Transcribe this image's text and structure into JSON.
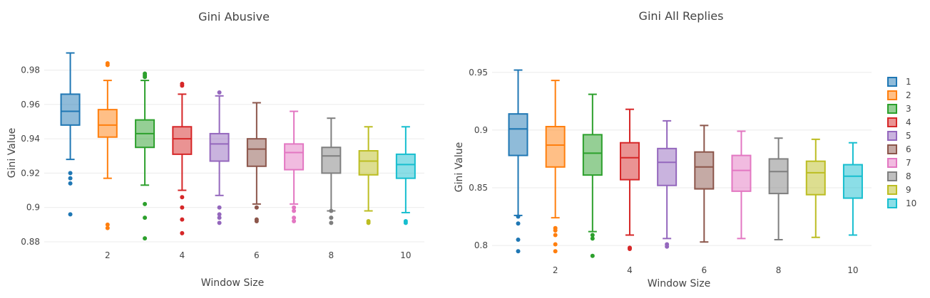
{
  "chart_data": [
    {
      "type": "box",
      "title": "Gini Abusive",
      "xlabel": "Window Size",
      "ylabel": "Gini Value",
      "ylim": [
        0.8775,
        0.996
      ],
      "yticks": [
        0.88,
        0.9,
        0.92,
        0.94,
        0.96,
        0.98
      ],
      "ytick_labels": [
        "0.88",
        "0.9",
        "0.92",
        "0.94",
        "0.96",
        "0.98"
      ],
      "xlim": [
        0.3,
        10.5
      ],
      "xticks": [
        2,
        4,
        6,
        8,
        10
      ],
      "xtick_labels": [
        "2",
        "4",
        "6",
        "8",
        "10"
      ],
      "series": [
        {
          "name": "1",
          "x": 1,
          "q1": 0.948,
          "median": 0.956,
          "q3": 0.966,
          "whisker_low": 0.928,
          "whisker_high": 0.99,
          "outliers": [
            0.92,
            0.917,
            0.914,
            0.896
          ]
        },
        {
          "name": "2",
          "x": 2,
          "q1": 0.941,
          "median": 0.948,
          "q3": 0.957,
          "whisker_low": 0.917,
          "whisker_high": 0.974,
          "outliers": [
            0.984,
            0.983,
            0.89,
            0.888
          ]
        },
        {
          "name": "3",
          "x": 3,
          "q1": 0.935,
          "median": 0.943,
          "q3": 0.951,
          "whisker_low": 0.913,
          "whisker_high": 0.974,
          "outliers": [
            0.978,
            0.977,
            0.976,
            0.902,
            0.894,
            0.882
          ]
        },
        {
          "name": "4",
          "x": 4,
          "q1": 0.931,
          "median": 0.94,
          "q3": 0.947,
          "whisker_low": 0.91,
          "whisker_high": 0.966,
          "outliers": [
            0.972,
            0.971,
            0.906,
            0.9,
            0.893,
            0.885
          ]
        },
        {
          "name": "5",
          "x": 5,
          "q1": 0.927,
          "median": 0.937,
          "q3": 0.943,
          "whisker_low": 0.907,
          "whisker_high": 0.965,
          "outliers": [
            0.967,
            0.9,
            0.896,
            0.894,
            0.891
          ]
        },
        {
          "name": "6",
          "x": 6,
          "q1": 0.924,
          "median": 0.934,
          "q3": 0.94,
          "whisker_low": 0.902,
          "whisker_high": 0.961,
          "outliers": [
            0.9,
            0.893,
            0.892
          ]
        },
        {
          "name": "7",
          "x": 7,
          "q1": 0.922,
          "median": 0.932,
          "q3": 0.937,
          "whisker_low": 0.902,
          "whisker_high": 0.956,
          "outliers": [
            0.9,
            0.898,
            0.894,
            0.892
          ]
        },
        {
          "name": "8",
          "x": 8,
          "q1": 0.92,
          "median": 0.93,
          "q3": 0.935,
          "whisker_low": 0.898,
          "whisker_high": 0.952,
          "outliers": [
            0.898,
            0.894,
            0.891
          ]
        },
        {
          "name": "9",
          "x": 9,
          "q1": 0.919,
          "median": 0.927,
          "q3": 0.933,
          "whisker_low": 0.898,
          "whisker_high": 0.947,
          "outliers": [
            0.892,
            0.891
          ]
        },
        {
          "name": "10",
          "x": 10,
          "q1": 0.917,
          "median": 0.925,
          "q3": 0.931,
          "whisker_low": 0.897,
          "whisker_high": 0.947,
          "outliers": [
            0.892,
            0.891
          ]
        }
      ]
    },
    {
      "type": "box",
      "title": "Gini All Replies",
      "xlabel": "Window Size",
      "ylabel": "Gini Value",
      "ylim": [
        0.7865,
        0.9665
      ],
      "yticks": [
        0.8,
        0.85,
        0.9,
        0.95
      ],
      "ytick_labels": [
        "0.8",
        "0.85",
        "0.9",
        "0.95"
      ],
      "xlim": [
        0.3,
        10.5
      ],
      "xticks": [
        2,
        4,
        6,
        8,
        10
      ],
      "xtick_labels": [
        "2",
        "4",
        "6",
        "8",
        "10"
      ],
      "series": [
        {
          "name": "1",
          "x": 1,
          "q1": 0.878,
          "median": 0.901,
          "q3": 0.914,
          "whisker_low": 0.826,
          "whisker_high": 0.952,
          "outliers": [
            0.825,
            0.819,
            0.805,
            0.795
          ]
        },
        {
          "name": "2",
          "x": 2,
          "q1": 0.868,
          "median": 0.887,
          "q3": 0.903,
          "whisker_low": 0.824,
          "whisker_high": 0.943,
          "outliers": [
            0.815,
            0.813,
            0.809,
            0.801,
            0.795
          ]
        },
        {
          "name": "3",
          "x": 3,
          "q1": 0.861,
          "median": 0.88,
          "q3": 0.896,
          "whisker_low": 0.812,
          "whisker_high": 0.931,
          "outliers": [
            0.809,
            0.806,
            0.791
          ]
        },
        {
          "name": "4",
          "x": 4,
          "q1": 0.857,
          "median": 0.876,
          "q3": 0.889,
          "whisker_low": 0.809,
          "whisker_high": 0.918,
          "outliers": [
            0.798,
            0.797
          ]
        },
        {
          "name": "5",
          "x": 5,
          "q1": 0.852,
          "median": 0.872,
          "q3": 0.884,
          "whisker_low": 0.806,
          "whisker_high": 0.908,
          "outliers": [
            0.801,
            0.799
          ]
        },
        {
          "name": "6",
          "x": 6,
          "q1": 0.849,
          "median": 0.868,
          "q3": 0.881,
          "whisker_low": 0.803,
          "whisker_high": 0.904,
          "outliers": []
        },
        {
          "name": "7",
          "x": 7,
          "q1": 0.847,
          "median": 0.865,
          "q3": 0.878,
          "whisker_low": 0.806,
          "whisker_high": 0.899,
          "outliers": []
        },
        {
          "name": "8",
          "x": 8,
          "q1": 0.845,
          "median": 0.864,
          "q3": 0.875,
          "whisker_low": 0.805,
          "whisker_high": 0.893,
          "outliers": []
        },
        {
          "name": "9",
          "x": 9,
          "q1": 0.844,
          "median": 0.863,
          "q3": 0.873,
          "whisker_low": 0.807,
          "whisker_high": 0.892,
          "outliers": []
        },
        {
          "name": "10",
          "x": 10,
          "q1": 0.841,
          "median": 0.86,
          "q3": 0.87,
          "whisker_low": 0.809,
          "whisker_high": 0.889,
          "outliers": []
        }
      ]
    }
  ],
  "legend": {
    "placement": "right",
    "items": [
      {
        "label": "1",
        "color": "#1f77b4"
      },
      {
        "label": "2",
        "color": "#ff7f0e"
      },
      {
        "label": "3",
        "color": "#2ca02c"
      },
      {
        "label": "4",
        "color": "#d62728"
      },
      {
        "label": "5",
        "color": "#9467bd"
      },
      {
        "label": "6",
        "color": "#8c564b"
      },
      {
        "label": "7",
        "color": "#e377c2"
      },
      {
        "label": "8",
        "color": "#7f7f7f"
      },
      {
        "label": "9",
        "color": "#bcbd22"
      },
      {
        "label": "10",
        "color": "#17becf"
      }
    ]
  }
}
